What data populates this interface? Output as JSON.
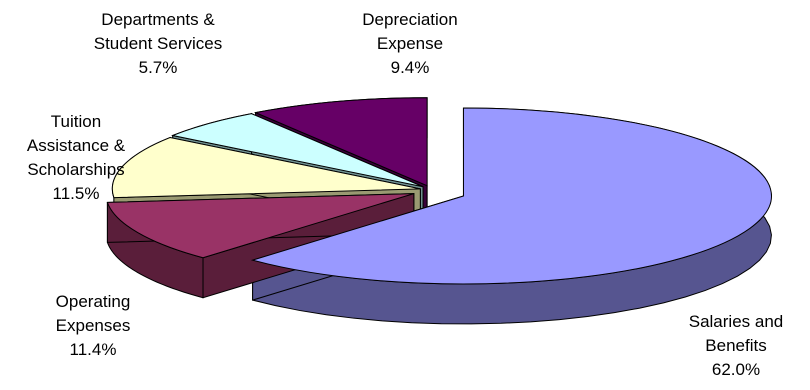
{
  "chart_data": {
    "type": "pie",
    "style": "3d-exploded",
    "title": "",
    "slices": [
      {
        "label": "Salaries and Benefits",
        "label_lines": [
          "Salaries and",
          "Benefits"
        ],
        "value": 62.0,
        "value_text": "62.0%",
        "color": "#9999ff",
        "side_color": "#565590"
      },
      {
        "label": "Operating Expenses",
        "label_lines": [
          "Operating",
          "Expenses"
        ],
        "value": 11.4,
        "value_text": "11.4%",
        "color": "#993366",
        "side_color": "#5a1e3a"
      },
      {
        "label": "Tuition Assistance & Scholarships",
        "label_lines": [
          "Tuition",
          "Assistance &",
          "Scholarships"
        ],
        "value": 11.5,
        "value_text": "11.5%",
        "color": "#ffffcc",
        "side_color": "#9a9a72"
      },
      {
        "label": "Departments & Student Services",
        "label_lines": [
          "Departments &",
          "Student Services"
        ],
        "value": 5.7,
        "value_text": "5.7%",
        "color": "#ccffff",
        "side_color": "#6f9090"
      },
      {
        "label": "Depreciation Expense",
        "label_lines": [
          "Depreciation",
          "Expense"
        ],
        "value": 9.4,
        "value_text": "9.4%",
        "color": "#660066",
        "side_color": "#3a003a"
      }
    ],
    "legend": "none"
  }
}
